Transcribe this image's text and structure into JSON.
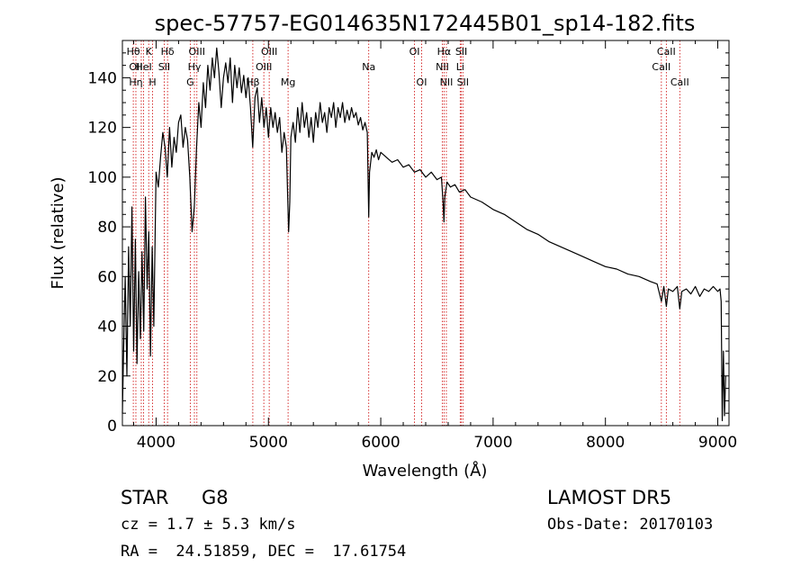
{
  "chart_data": {
    "type": "line",
    "title": "spec-57757-EG014635N172445B01_sp14-182.fits",
    "xlabel": "Wavelength (Å)",
    "ylabel": "Flux (relative)",
    "xlim": [
      3700,
      9100
    ],
    "ylim": [
      0,
      155
    ],
    "xticks": [
      4000,
      5000,
      6000,
      7000,
      8000,
      9000
    ],
    "yticks": [
      0,
      20,
      40,
      60,
      80,
      100,
      120,
      140
    ],
    "grid": false,
    "series": [
      {
        "points": [
          [
            3700,
            5
          ],
          [
            3710,
            28
          ],
          [
            3725,
            60
          ],
          [
            3740,
            20
          ],
          [
            3755,
            72
          ],
          [
            3770,
            40
          ],
          [
            3785,
            88
          ],
          [
            3800,
            30
          ],
          [
            3815,
            75
          ],
          [
            3830,
            25
          ],
          [
            3845,
            62
          ],
          [
            3860,
            35
          ],
          [
            3875,
            70
          ],
          [
            3890,
            38
          ],
          [
            3905,
            92
          ],
          [
            3920,
            55
          ],
          [
            3935,
            78
          ],
          [
            3950,
            28
          ],
          [
            3965,
            72
          ],
          [
            3980,
            40
          ],
          [
            4000,
            102
          ],
          [
            4020,
            96
          ],
          [
            4040,
            108
          ],
          [
            4060,
            118
          ],
          [
            4080,
            112
          ],
          [
            4100,
            100
          ],
          [
            4120,
            120
          ],
          [
            4140,
            104
          ],
          [
            4160,
            116
          ],
          [
            4180,
            110
          ],
          [
            4200,
            122
          ],
          [
            4220,
            125
          ],
          [
            4240,
            112
          ],
          [
            4260,
            120
          ],
          [
            4280,
            115
          ],
          [
            4300,
            100
          ],
          [
            4320,
            78
          ],
          [
            4340,
            88
          ],
          [
            4360,
            112
          ],
          [
            4380,
            130
          ],
          [
            4400,
            120
          ],
          [
            4420,
            138
          ],
          [
            4440,
            128
          ],
          [
            4460,
            145
          ],
          [
            4480,
            135
          ],
          [
            4500,
            148
          ],
          [
            4520,
            140
          ],
          [
            4540,
            152
          ],
          [
            4560,
            142
          ],
          [
            4580,
            128
          ],
          [
            4600,
            140
          ],
          [
            4620,
            146
          ],
          [
            4640,
            138
          ],
          [
            4660,
            148
          ],
          [
            4680,
            130
          ],
          [
            4700,
            145
          ],
          [
            4720,
            136
          ],
          [
            4740,
            144
          ],
          [
            4760,
            134
          ],
          [
            4780,
            141
          ],
          [
            4800,
            132
          ],
          [
            4820,
            140
          ],
          [
            4840,
            128
          ],
          [
            4860,
            112
          ],
          [
            4880,
            132
          ],
          [
            4900,
            136
          ],
          [
            4920,
            122
          ],
          [
            4940,
            132
          ],
          [
            4960,
            120
          ],
          [
            4980,
            128
          ],
          [
            5000,
            116
          ],
          [
            5020,
            128
          ],
          [
            5040,
            120
          ],
          [
            5060,
            126
          ],
          [
            5080,
            118
          ],
          [
            5100,
            124
          ],
          [
            5120,
            110
          ],
          [
            5140,
            118
          ],
          [
            5160,
            112
          ],
          [
            5170,
            94
          ],
          [
            5180,
            78
          ],
          [
            5190,
            90
          ],
          [
            5200,
            116
          ],
          [
            5220,
            122
          ],
          [
            5240,
            114
          ],
          [
            5260,
            128
          ],
          [
            5280,
            118
          ],
          [
            5300,
            130
          ],
          [
            5320,
            120
          ],
          [
            5340,
            126
          ],
          [
            5360,
            116
          ],
          [
            5380,
            124
          ],
          [
            5400,
            114
          ],
          [
            5420,
            126
          ],
          [
            5440,
            120
          ],
          [
            5460,
            130
          ],
          [
            5480,
            122
          ],
          [
            5500,
            126
          ],
          [
            5520,
            118
          ],
          [
            5540,
            128
          ],
          [
            5560,
            124
          ],
          [
            5580,
            130
          ],
          [
            5600,
            120
          ],
          [
            5620,
            128
          ],
          [
            5640,
            124
          ],
          [
            5660,
            130
          ],
          [
            5680,
            122
          ],
          [
            5700,
            127
          ],
          [
            5720,
            123
          ],
          [
            5740,
            128
          ],
          [
            5760,
            124
          ],
          [
            5780,
            126
          ],
          [
            5800,
            121
          ],
          [
            5820,
            124
          ],
          [
            5840,
            119
          ],
          [
            5860,
            122
          ],
          [
            5880,
            118
          ],
          [
            5893,
            84
          ],
          [
            5900,
            102
          ],
          [
            5920,
            110
          ],
          [
            5940,
            108
          ],
          [
            5960,
            111
          ],
          [
            5980,
            107
          ],
          [
            6000,
            110
          ],
          [
            6050,
            108
          ],
          [
            6100,
            106
          ],
          [
            6150,
            107
          ],
          [
            6200,
            104
          ],
          [
            6250,
            105
          ],
          [
            6300,
            102
          ],
          [
            6350,
            103
          ],
          [
            6400,
            100
          ],
          [
            6450,
            102
          ],
          [
            6500,
            99
          ],
          [
            6540,
            100
          ],
          [
            6555,
            90
          ],
          [
            6563,
            82
          ],
          [
            6570,
            92
          ],
          [
            6590,
            98
          ],
          [
            6620,
            96
          ],
          [
            6660,
            97
          ],
          [
            6700,
            94
          ],
          [
            6750,
            95
          ],
          [
            6800,
            92
          ],
          [
            6900,
            90
          ],
          [
            7000,
            87
          ],
          [
            7100,
            85
          ],
          [
            7200,
            82
          ],
          [
            7300,
            79
          ],
          [
            7400,
            77
          ],
          [
            7500,
            74
          ],
          [
            7600,
            72
          ],
          [
            7700,
            70
          ],
          [
            7800,
            68
          ],
          [
            7900,
            66
          ],
          [
            8000,
            64
          ],
          [
            8100,
            63
          ],
          [
            8200,
            61
          ],
          [
            8300,
            60
          ],
          [
            8400,
            58
          ],
          [
            8460,
            57
          ],
          [
            8498,
            50
          ],
          [
            8520,
            56
          ],
          [
            8542,
            48
          ],
          [
            8560,
            55
          ],
          [
            8600,
            54
          ],
          [
            8640,
            56
          ],
          [
            8662,
            47
          ],
          [
            8680,
            54
          ],
          [
            8720,
            55
          ],
          [
            8760,
            53
          ],
          [
            8800,
            56
          ],
          [
            8840,
            52
          ],
          [
            8880,
            55
          ],
          [
            8920,
            54
          ],
          [
            8960,
            56
          ],
          [
            9000,
            54
          ],
          [
            9020,
            55
          ],
          [
            9030,
            50
          ],
          [
            9040,
            2
          ],
          [
            9050,
            30
          ],
          [
            9060,
            4
          ],
          [
            9070,
            20
          ]
        ]
      }
    ],
    "lines": [
      {
        "x": 3797,
        "rows": [
          "Hθ",
          "",
          ""
        ]
      },
      {
        "x": 3820,
        "rows": [
          "",
          "OII",
          "Hη"
        ]
      },
      {
        "x": 3868,
        "rows": [
          "",
          "",
          ""
        ]
      },
      {
        "x": 3889,
        "rows": [
          "",
          "HeI",
          ""
        ]
      },
      {
        "x": 3934,
        "rows": [
          "K",
          "",
          ""
        ]
      },
      {
        "x": 3969,
        "rows": [
          "",
          "",
          "H"
        ]
      },
      {
        "x": 4072,
        "rows": [
          "",
          "SII",
          ""
        ]
      },
      {
        "x": 4102,
        "rows": [
          "Hδ",
          "",
          ""
        ]
      },
      {
        "x": 4304,
        "rows": [
          "",
          "",
          "G"
        ]
      },
      {
        "x": 4341,
        "rows": [
          "",
          "Hγ",
          ""
        ]
      },
      {
        "x": 4363,
        "rows": [
          "OIII",
          "",
          ""
        ]
      },
      {
        "x": 4861,
        "rows": [
          "",
          "",
          "Hβ"
        ]
      },
      {
        "x": 4959,
        "rows": [
          "",
          "OIII",
          ""
        ]
      },
      {
        "x": 5007,
        "rows": [
          "OIII",
          "",
          ""
        ]
      },
      {
        "x": 5175,
        "rows": [
          "",
          "",
          "Mg"
        ]
      },
      {
        "x": 5893,
        "rows": [
          "",
          "Na",
          ""
        ]
      },
      {
        "x": 6300,
        "rows": [
          "OI",
          "",
          ""
        ]
      },
      {
        "x": 6364,
        "rows": [
          "",
          "",
          "OI"
        ]
      },
      {
        "x": 6548,
        "rows": [
          "",
          "NII",
          ""
        ]
      },
      {
        "x": 6563,
        "rows": [
          "Hα",
          "",
          ""
        ]
      },
      {
        "x": 6584,
        "rows": [
          "",
          "",
          "NII"
        ]
      },
      {
        "x": 6707,
        "rows": [
          "",
          "Li",
          ""
        ]
      },
      {
        "x": 6717,
        "rows": [
          "SII",
          "",
          ""
        ]
      },
      {
        "x": 6731,
        "rows": [
          "",
          "",
          "SII"
        ]
      },
      {
        "x": 8498,
        "rows": [
          "",
          "CaII",
          ""
        ]
      },
      {
        "x": 8542,
        "rows": [
          "CaII",
          "",
          ""
        ]
      },
      {
        "x": 8662,
        "rows": [
          "",
          "",
          "CaII"
        ]
      }
    ]
  },
  "info": {
    "object_class": "STAR",
    "subclass": "G8",
    "redshift": "cz = 1.7 ± 5.3 km/s",
    "coords": "RA =  24.51859, DEC =  17.61754",
    "survey": "LAMOST DR5",
    "obs_date": "Obs-Date: 20170103"
  },
  "colors": {
    "spectrum": "#000000",
    "line_markers": "#cc0000",
    "axes": "#000000"
  }
}
